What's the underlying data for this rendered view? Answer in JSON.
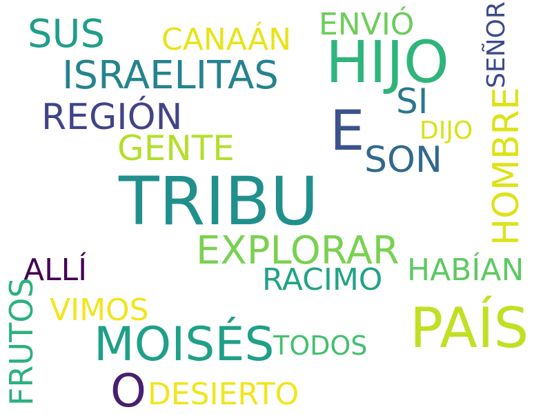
{
  "cloud": {
    "words": {
      "tribu": {
        "text": "TRIBU",
        "color": "#21908d"
      },
      "hijo": {
        "text": "HIJO",
        "color": "#2fb47c"
      },
      "pais": {
        "text": "PAÍS",
        "color": "#c2df23"
      },
      "moises": {
        "text": "MOISÉS",
        "color": "#1fa088"
      },
      "e": {
        "text": "E",
        "color": "#3b528b"
      },
      "o": {
        "text": "O",
        "color": "#481f71"
      },
      "explorar": {
        "text": "EXPLORAR",
        "color": "#7ad151"
      },
      "israelitas": {
        "text": "ISRAELITAS",
        "color": "#25838e"
      },
      "sus": {
        "text": "SUS",
        "color": "#1f9e89"
      },
      "region": {
        "text": "REGIÓN",
        "color": "#414487"
      },
      "son": {
        "text": "SON",
        "color": "#31688e"
      },
      "si": {
        "text": "SI",
        "color": "#2a788e"
      },
      "gente": {
        "text": "GENTE",
        "color": "#b5de2b"
      },
      "canaan": {
        "text": "CANAÁN",
        "color": "#e8e419"
      },
      "envio": {
        "text": "ENVIÓ",
        "color": "#6ccd5a"
      },
      "racimo": {
        "text": "RACIMO",
        "color": "#20a386"
      },
      "alli": {
        "text": "ALLÍ",
        "color": "#440154"
      },
      "vimos": {
        "text": "VIMOS",
        "color": "#f1e51d"
      },
      "habian": {
        "text": "HABÍAN",
        "color": "#5ec962"
      },
      "todos": {
        "text": "TODOS",
        "color": "#44bf70"
      },
      "desierto": {
        "text": "DESIERTO",
        "color": "#f1e51d"
      },
      "dijo": {
        "text": "DIJO",
        "color": "#d8e219"
      },
      "hombre": {
        "text": "HOMBRE",
        "color": "#dde318"
      },
      "senor": {
        "text": "SEÑOR",
        "color": "#3e4a89"
      },
      "frutos": {
        "text": "FRUTOS",
        "color": "#2cb17e"
      }
    }
  }
}
